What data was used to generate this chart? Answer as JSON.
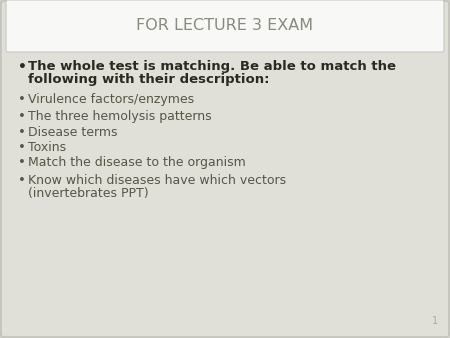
{
  "title": "FOR LECTURE 3 EXAM",
  "title_color": "#8a8a80",
  "title_fontsize": 11.5,
  "background_color": "#d0d0c8",
  "slide_bg": "#e0e0d8",
  "title_box_color": "#f8f8f6",
  "title_box_edge": "#c8c8c0",
  "bold_bullet_line1": "The whole test is matching. Be able to match the",
  "bold_bullet_line2": "following with their description:",
  "bold_bullet_color": "#2a2a20",
  "bold_bullet_fontsize": 9.5,
  "bullets": [
    "Virulence factors/enzymes",
    "The three hemolysis patterns",
    "Disease terms",
    "Toxins",
    "Match the disease to the organism",
    "Know which diseases have which vectors\n(invertebrates PPT)"
  ],
  "bullet_color": "#555548",
  "bullet_fontsize": 9.0,
  "page_number": "1",
  "page_num_color": "#aaaaaa",
  "page_num_fontsize": 7
}
